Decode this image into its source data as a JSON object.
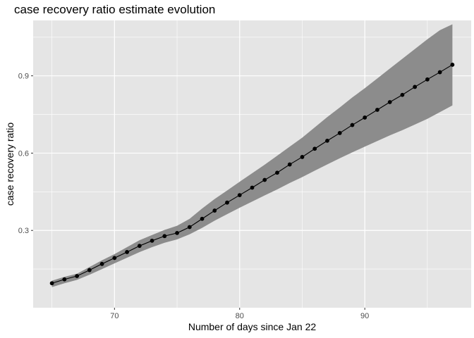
{
  "chart_data": {
    "type": "line",
    "title": "case recovery ratio estimate evolution",
    "xlabel": "Number of days since Jan 22",
    "ylabel": "case recovery ratio",
    "xlim": [
      63.5,
      98.5
    ],
    "ylim": [
      0.0,
      1.115
    ],
    "x_ticks": [
      70,
      80,
      90
    ],
    "x_tick_labels": [
      "70",
      "80",
      "90"
    ],
    "y_ticks": [
      0.3,
      0.6,
      0.9
    ],
    "y_tick_labels": [
      "0.3",
      "0.6",
      "0.9"
    ],
    "x_minor": [
      65,
      75,
      85,
      95
    ],
    "y_minor": [
      0.15,
      0.45,
      0.75,
      1.05
    ],
    "grid": true,
    "colors": {
      "panel": "#e5e5e5",
      "grid": "#ffffff",
      "band": "#8c8c8c",
      "line": "#000000"
    },
    "series": [
      {
        "x": [
          65,
          66,
          67,
          68,
          69,
          70,
          71,
          72,
          73,
          74,
          75,
          76,
          77,
          78,
          79,
          80,
          81,
          82,
          83,
          84,
          85,
          86,
          87,
          88,
          89,
          90,
          91,
          92,
          93,
          94,
          95,
          96,
          97
        ],
        "y": [
          0.095,
          0.11,
          0.123,
          0.146,
          0.17,
          0.193,
          0.216,
          0.24,
          0.26,
          0.278,
          0.29,
          0.313,
          0.345,
          0.377,
          0.408,
          0.437,
          0.466,
          0.496,
          0.524,
          0.556,
          0.585,
          0.617,
          0.648,
          0.678,
          0.709,
          0.738,
          0.768,
          0.798,
          0.826,
          0.857,
          0.886,
          0.914,
          0.943
        ],
        "lower": [
          0.08,
          0.095,
          0.108,
          0.128,
          0.15,
          0.172,
          0.194,
          0.216,
          0.235,
          0.252,
          0.265,
          0.285,
          0.31,
          0.338,
          0.363,
          0.388,
          0.412,
          0.436,
          0.459,
          0.484,
          0.507,
          0.532,
          0.556,
          0.58,
          0.603,
          0.625,
          0.647,
          0.669,
          0.689,
          0.711,
          0.733,
          0.759,
          0.785
        ],
        "upper": [
          0.105,
          0.12,
          0.132,
          0.158,
          0.184,
          0.208,
          0.235,
          0.262,
          0.282,
          0.302,
          0.318,
          0.345,
          0.385,
          0.422,
          0.455,
          0.489,
          0.522,
          0.555,
          0.59,
          0.625,
          0.66,
          0.7,
          0.74,
          0.777,
          0.816,
          0.852,
          0.89,
          0.928,
          0.966,
          1.004,
          1.042,
          1.077,
          1.1
        ]
      }
    ]
  }
}
